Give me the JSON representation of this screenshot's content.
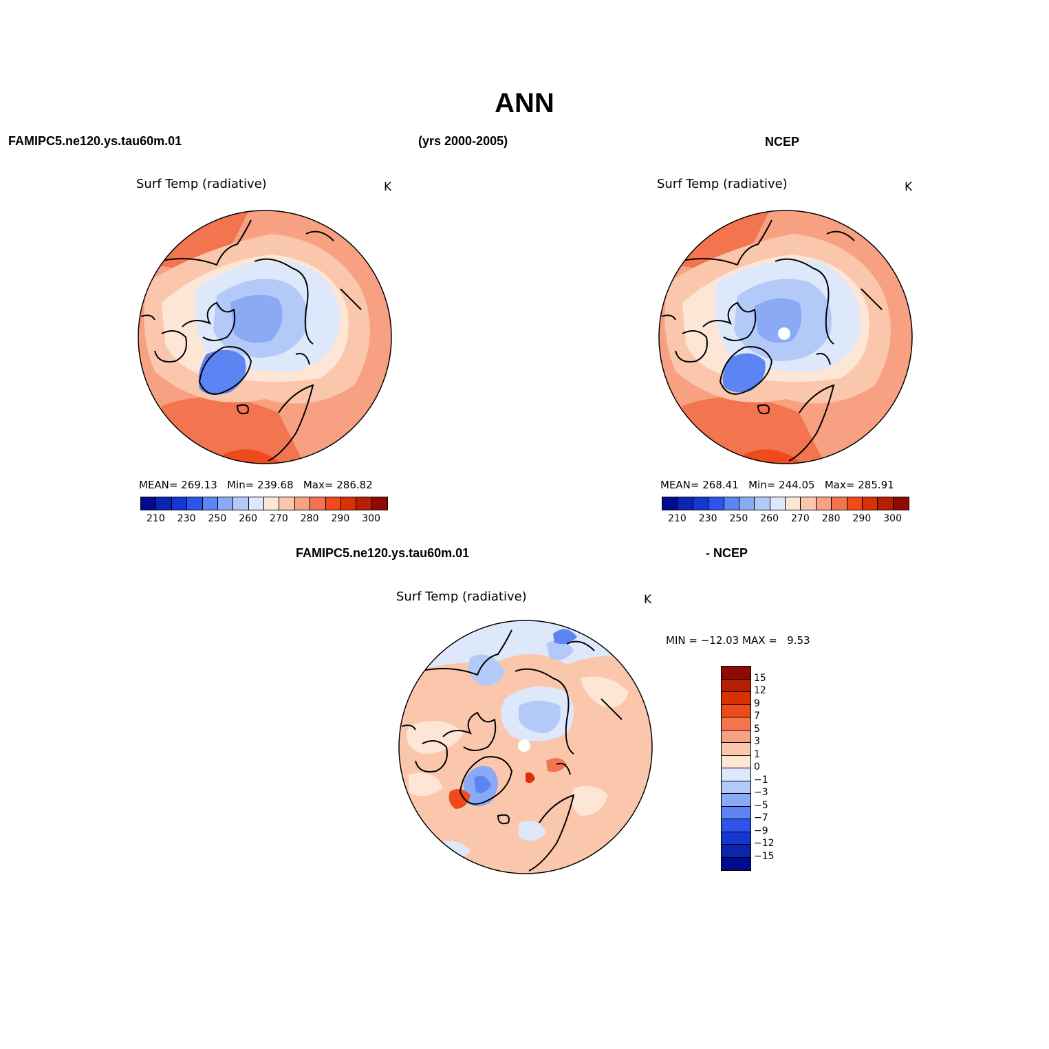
{
  "header": {
    "title": "ANN",
    "model_name": "FAMIPC5.ne120.ys.tau60m.01",
    "years": "(yrs 2000-2005)",
    "obs_name": "NCEP",
    "diff_left": "FAMIPC5.ne120.ys.tau60m.01",
    "diff_right": "- NCEP"
  },
  "panels": {
    "model": {
      "variable": "Surf Temp (radiative)",
      "units": "K",
      "stats": {
        "mean_label": "MEAN=",
        "mean": "269.13",
        "min_label": "Min=",
        "min": "239.68",
        "max_label": "Max=",
        "max": "286.82"
      }
    },
    "obs": {
      "variable": "Surf Temp (radiative)",
      "units": "K",
      "stats": {
        "mean_label": "MEAN=",
        "mean": "268.41",
        "min_label": "Min=",
        "min": "244.05",
        "max_label": "Max=",
        "max": "285.91"
      }
    },
    "diff": {
      "variable": "Surf Temp (radiative)",
      "units": "K",
      "stats": {
        "min_label": "MIN =",
        "min": "−12.03",
        "max_label": "MAX =",
        "max": "9.53"
      }
    }
  },
  "colorbar_abs": {
    "colors": [
      "#000c8b",
      "#0a26b0",
      "#1637cf",
      "#2d53ea",
      "#5c84f2",
      "#8aaaf5",
      "#b3c9f8",
      "#dde8fb",
      "#fde6d6",
      "#fbc7ac",
      "#f7a082",
      "#f37550",
      "#ee4a1c",
      "#d93106",
      "#b61f03",
      "#8e0b04"
    ],
    "labels": [
      "210",
      "230",
      "250",
      "260",
      "270",
      "280",
      "290",
      "300"
    ]
  },
  "colorbar_diff": {
    "colors": [
      "#8e0b04",
      "#b61f03",
      "#d93106",
      "#ee4a1c",
      "#f37550",
      "#f7a082",
      "#fbc7ac",
      "#fde6d6",
      "#dde8fb",
      "#b3c9f8",
      "#8aaaf5",
      "#5c84f2",
      "#2d53ea",
      "#1637cf",
      "#0a26b0",
      "#000c8b"
    ],
    "labels": [
      "15",
      "12",
      "9",
      "7",
      "5",
      "3",
      "1",
      "0",
      "−1",
      "−3",
      "−5",
      "−7",
      "−9",
      "−12",
      "−15"
    ]
  }
}
